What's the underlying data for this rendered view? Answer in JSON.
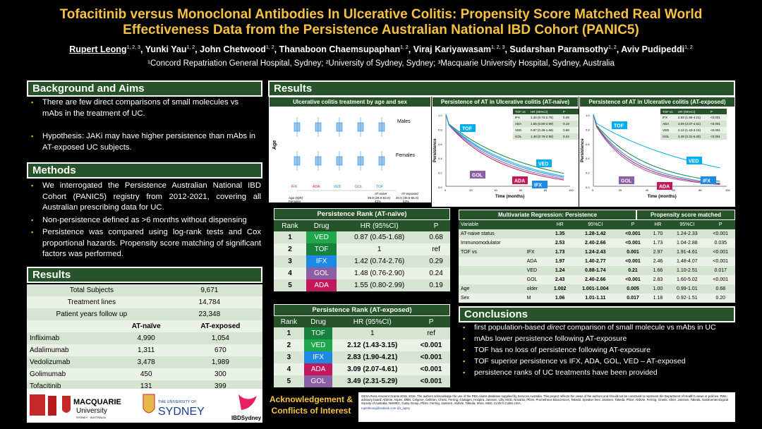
{
  "header": {
    "title_line1": "Tofacitinib versus Monoclonal Antibodies In Ulcerative Colitis: Propensity Score Matched Real World",
    "title_line2": "Effectiveness Data from the Persistence Australian National IBD Cohort (PANIC5)",
    "authors": [
      {
        "name": "Rupert Leong",
        "sup": "1, 2, 3"
      },
      {
        "name": "Yunki Yau",
        "sup": "1, 2"
      },
      {
        "name": "John Chetwood",
        "sup": "1, 2"
      },
      {
        "name": "Thanaboon Chaemsupaphan",
        "sup": "1, 2"
      },
      {
        "name": "Viraj Kariyawasam",
        "sup": "1, 2, 3"
      },
      {
        "name": "Sudarshan Paramsothy",
        "sup": "1, 2"
      },
      {
        "name": "Aviv Pudipeddi",
        "sup": "1, 2"
      }
    ],
    "affiliations": "¹Concord Repatriation General Hospital, Sydney; ²University of Sydney, Sydney; ³Macquarie University Hospital, Sydney, Australia"
  },
  "background": {
    "heading": "Background and Aims",
    "bullets": [
      "There are few direct comparisons of small molecules vs mAbs in the treatment of UC.",
      "Hypothesis: JAKi may have higher persistence than mAbs in AT-exposed UC subjects."
    ]
  },
  "methods": {
    "heading": "Methods",
    "bullets": [
      "We interrogated the Persistence Australian National IBD Cohort (PANIC5) registry from 2012-2021, covering all Australian prescribing data for UC.",
      "Non-persistence defined as >6 months without dispensing",
      "Persistence was compared using log-rank tests and Cox proportional hazards. Propensity score matching of significant factors was performed."
    ]
  },
  "results_left": {
    "heading": "Results",
    "summary": [
      {
        "label": "Total Subjects",
        "value": "9,671"
      },
      {
        "label": "Treatment lines",
        "value": "14,784"
      },
      {
        "label": "Patient years follow up",
        "value": "23,348"
      }
    ],
    "col_heads": [
      "AT-naïve",
      "AT-exposed"
    ],
    "rows": [
      {
        "drug": "Infliximab",
        "naive": "4,990",
        "exposed": "1,054"
      },
      {
        "drug": "Adalimumab",
        "naive": "1,311",
        "exposed": "670"
      },
      {
        "drug": "Vedolizumab",
        "naive": "3,478",
        "exposed": "1,989"
      },
      {
        "drug": "Golimumab",
        "naive": "450",
        "exposed": "300"
      },
      {
        "drug": "Tofacitinib",
        "naive": "131",
        "exposed": "399"
      }
    ]
  },
  "results_main": {
    "heading": "Results",
    "chart1_title": "Ulcerative colitis treatment by age and sex",
    "chart1_males": "Males",
    "chart1_females": "Females",
    "chart1_ylabel": "Age",
    "chart1_x": [
      "IFX",
      "ADA",
      "VED",
      "GOL",
      "TOF"
    ],
    "chart1_stats": {
      "heads": [
        "",
        "AT-naive",
        "AT-exposed"
      ],
      "rows": [
        [
          "Age (IQR)",
          "39.0 (28.0-53.0)",
          "40.5 (30.5-55.0)"
        ],
        [
          "Females",
          "43%",
          "53%"
        ]
      ]
    },
    "chart2_title": "Persistence of AT in Ulcerative colitis (AT-naïve)",
    "chart3_title": "Persistence of AT in Ulcerative colitis (AT-exposed)",
    "km_xlabel": "Time (months)",
    "km_ylabel": "Persistence",
    "km_ticks_x": [
      "0",
      "20",
      "40",
      "60",
      "80",
      "100"
    ],
    "km_ticks_y": [
      "1.0",
      "0.8",
      "0.6",
      "0.4",
      "0.2",
      "0.0"
    ],
    "km_naive_table": {
      "heads": [
        "TOF vs",
        "HR (95%CI)",
        "P"
      ],
      "rows": [
        [
          "IFX",
          "1.42 (0.74-2.76)",
          "0.29"
        ],
        [
          "ADA",
          "1.55 (0.80-2.99)",
          "0.19"
        ],
        [
          "VED",
          "0.87 (0.45-1.68)",
          "0.68"
        ],
        [
          "GOL",
          "1.48 (0.76-2.90)",
          "0.24"
        ]
      ]
    },
    "km_exposed_table": {
      "heads": [
        "TOF vs",
        "HR (95%CI)",
        "P"
      ],
      "rows": [
        [
          "IFX",
          "2.83 (1.90-4.21)",
          "<0.001"
        ],
        [
          "ADA",
          "3.09 (2.07-4.61)",
          "<0.001"
        ],
        [
          "VED",
          "2.12 (1.43-3.15)",
          "<0.001"
        ],
        [
          "GOL",
          "3.49 (2.31-5.29)",
          "<0.001"
        ]
      ]
    },
    "km_labels": [
      "TOF",
      "VED",
      "GOL",
      "ADA",
      "IFX"
    ]
  },
  "rank_naive": {
    "caption": "Persistence Rank (AT-naïve)",
    "heads": [
      "Rank",
      "Drug",
      "HR (95%CI)",
      "P"
    ],
    "rows": [
      {
        "rank": "1",
        "drug": "VED",
        "hr": "0.87 (0.45-1.68)",
        "p": "0.68"
      },
      {
        "rank": "2",
        "drug": "TOF",
        "hr": "1",
        "p": "ref"
      },
      {
        "rank": "3",
        "drug": "IFX",
        "hr": "1.42 (0.74-2.76)",
        "p": "0.29"
      },
      {
        "rank": "4",
        "drug": "GOL",
        "hr": "1.48 (0.76-2.90)",
        "p": "0.24"
      },
      {
        "rank": "5",
        "drug": "ADA",
        "hr": "1.55 (0.80-2.99)",
        "p": "0.19"
      }
    ]
  },
  "rank_exposed": {
    "caption": "Persistence Rank (AT-exposed)",
    "heads": [
      "Rank",
      "Drug",
      "HR (95%CI)",
      "P"
    ],
    "rows": [
      {
        "rank": "1",
        "drug": "TOF",
        "hr": "1",
        "p": "ref"
      },
      {
        "rank": "2",
        "drug": "VED",
        "hr": "2.12 (1.43-3.15)",
        "p": "<0.001"
      },
      {
        "rank": "3",
        "drug": "IFX",
        "hr": "2.83 (1.90-4.21)",
        "p": "<0.001"
      },
      {
        "rank": "4",
        "drug": "ADA",
        "hr": "3.09 (2.07-4.61)",
        "p": "<0.001"
      },
      {
        "rank": "5",
        "drug": "GOL",
        "hr": "3.49 (2.31-5.29)",
        "p": "<0.001"
      }
    ]
  },
  "multivariate": {
    "caption_left": "Multivariate Regression: Persistence",
    "caption_right": "Propensity score matched",
    "heads": [
      "Variable",
      "",
      "HR",
      "95%CI",
      "P",
      "HR",
      "95%CI",
      "P"
    ],
    "rows": [
      [
        "AT-naive status",
        "",
        "1.35",
        "1.28-1.42",
        "<0.001",
        "1.70",
        "1.24-2.33",
        "<0.001"
      ],
      [
        "Immunomodulator",
        "",
        "2.53",
        "2.40-2.66",
        "<0.001",
        "1.73",
        "1.04-2.88",
        "0.035"
      ],
      [
        "TOF vs",
        "IFX",
        "1.73",
        "1.24-2.43",
        "0.001",
        "2.97",
        "1.91-4.61",
        "<0.001"
      ],
      [
        "",
        "ADA",
        "1.97",
        "1.40-2.77",
        "<0.001",
        "2.46",
        "1.48-4.07",
        "<0.001"
      ],
      [
        "",
        "VED",
        "1.24",
        "0.88-1.74",
        "0.21",
        "1.66",
        "1.10-2.51",
        "0.017"
      ],
      [
        "",
        "GOL",
        "2.43",
        "2.40-2.66",
        "<0.001",
        "2.83",
        "1.60-5.02",
        "<0.001"
      ],
      [
        "Age",
        "older",
        "1.002",
        "1.001-1.004",
        "0.005",
        "1.00",
        "0.99-1.01",
        "0.68"
      ],
      [
        "Sex",
        "M",
        "1.06",
        "1.01-1.11",
        "0.017",
        "1.18",
        "0.92-1.51",
        "0.20"
      ]
    ]
  },
  "conclusions": {
    "heading": "Conclusions",
    "bullets": [
      {
        "pre": "first population-based ",
        "em": "direct",
        "post": " comparison of small molecule vs mAbs in UC"
      },
      {
        "pre": "mAbs lower persistence following AT-exposure",
        "em": "",
        "post": ""
      },
      {
        "pre": "TOF has no loss of persistence following AT-exposure",
        "em": "",
        "post": ""
      },
      {
        "pre": "TOF superior persistence vs IFX, ADA, GOL, VED – AT-exposed",
        "em": "",
        "post": ""
      },
      {
        "pre": "persistence ranks of UC treatments have been provided",
        "em": "",
        "post": ""
      }
    ]
  },
  "footer": {
    "ack_heading_1": "Acknowledgement &",
    "ack_heading_2": "Conflicts of Interest",
    "ack_text": "GESA Ross Amorent Grants 2015, 2016. The authors acknowledge the use of the PBS claims database supplied by Services Australia. This project reflects the views of the authors and should not be construed to represent the Department of Health's views or policies. RWL: advisory board: AbbVie, Aspen, BMS, Celgene, Celltrion, Chiesi, Ferring, Glutagen, Hospira, Janssen, Lilly, MSD, Novartis, Pfizer, Prometheus Biosciences, Takeda. Speaker fees: Janssen, Takeda, Pfizer, AbbVie, Ferring. Grants: Shire, Janssen, Takeda, Gastroenterological Society of Australia, NHMRC, Gutsy Group, Pfizer. Ferring, Janssen, AbbVie, Takeda, Shire, MSD, Crohn's Colitis USA.",
    "contact": "rupertleong@outlook.com   @r_lupey",
    "logos": {
      "macquarie_1": "MACQUARIE",
      "macquarie_2": "University",
      "macquarie_3": "SYDNEY · AUSTRALIA",
      "sydney_1": "THE UNIVERSITY OF",
      "sydney_2": "SYDNEY",
      "ibd": "IBDSydney"
    }
  }
}
